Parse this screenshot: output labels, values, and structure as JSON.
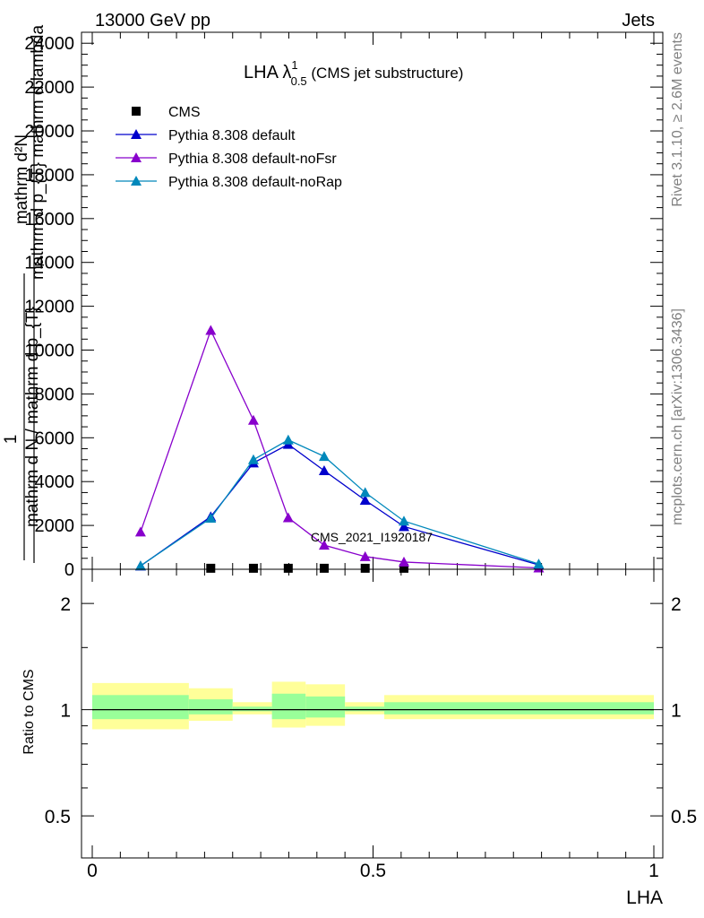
{
  "header": {
    "left": "13000 GeV pp",
    "right": "Jets"
  },
  "side_texts": {
    "rivet": "Rivet 3.1.10, ≥ 2.6M events",
    "mcplots": "mcplots.cern.ch [arXiv:1306.3436]"
  },
  "title": {
    "main": "LHA λ",
    "sup": "1",
    "sub": "0.5",
    "suffix": " (CMS jet substructure)"
  },
  "watermark": "CMS_2021_I1920187",
  "upper_ylabel": {
    "frac_num": "mathrm d²N",
    "inner_num": "mathrm d p_{T} mathrm d lambda",
    "one": "1",
    "frac_den": "mathrm d N / mathrm d p_{T}"
  },
  "lower_ylabel": "Ratio to CMS",
  "xlabel": "LHA",
  "chart_data": [
    {
      "type": "line",
      "panel": "main",
      "xlim": [
        0,
        1
      ],
      "ylim": [
        0,
        24500
      ],
      "ytick_values": [
        0,
        2000,
        4000,
        6000,
        8000,
        10000,
        12000,
        14000,
        16000,
        18000,
        20000,
        22000,
        24000
      ],
      "ytick_labels": [
        "0",
        "2000",
        "4000",
        "6000",
        "8000",
        "10000",
        "12000",
        "14000",
        "16000",
        "18000",
        "20000",
        "22000",
        "24000"
      ],
      "legend_placement": "top-left",
      "series": [
        {
          "name": "CMS",
          "color": "#000000",
          "marker": "square",
          "line": false,
          "x": [
            0.211,
            0.287,
            0.349,
            0.413,
            0.486,
            0.555
          ],
          "y": [
            5,
            5,
            5,
            5,
            5,
            5
          ]
        },
        {
          "name": "Pythia 8.308 default",
          "color": "#0000cc",
          "marker": "triangle",
          "line": true,
          "x": [
            0.086,
            0.211,
            0.287,
            0.349,
            0.413,
            0.486,
            0.555,
            0.795
          ],
          "y": [
            150,
            2400,
            4850,
            5700,
            4500,
            3150,
            1950,
            200
          ]
        },
        {
          "name": "Pythia 8.308 default-noFsr",
          "color": "#8800cc",
          "marker": "triangle",
          "line": true,
          "x": [
            0.086,
            0.211,
            0.287,
            0.349,
            0.413,
            0.486,
            0.555,
            0.795
          ],
          "y": [
            1700,
            10900,
            6800,
            2350,
            1100,
            580,
            330,
            60
          ]
        },
        {
          "name": "Pythia 8.308 default-noRap",
          "color": "#0088bb",
          "marker": "triangle",
          "line": true,
          "x": [
            0.086,
            0.211,
            0.287,
            0.349,
            0.413,
            0.486,
            0.555,
            0.795
          ],
          "y": [
            160,
            2330,
            5000,
            5900,
            5150,
            3500,
            2200,
            240
          ]
        }
      ]
    },
    {
      "type": "area",
      "panel": "ratio",
      "xlim": [
        0,
        1
      ],
      "ylim_log": [
        0.38,
        2.5
      ],
      "ytick_values": [
        0.5,
        1,
        2
      ],
      "ytick_labels": [
        "0.5",
        "1",
        "2"
      ],
      "xtick_values": [
        0,
        0.5,
        1
      ],
      "xtick_labels": [
        "0",
        "0.5",
        "1"
      ],
      "reference_line": 1,
      "bands": [
        {
          "x0": 0.0,
          "x1": 0.172,
          "yellow": [
            0.88,
            1.19
          ],
          "green": [
            0.94,
            1.1
          ]
        },
        {
          "x0": 0.172,
          "x1": 0.25,
          "yellow": [
            0.93,
            1.15
          ],
          "green": [
            0.97,
            1.07
          ]
        },
        {
          "x0": 0.25,
          "x1": 0.32,
          "yellow": [
            0.97,
            1.05
          ],
          "green": [
            0.99,
            1.02
          ]
        },
        {
          "x0": 0.32,
          "x1": 0.38,
          "yellow": [
            0.89,
            1.2
          ],
          "green": [
            0.94,
            1.11
          ]
        },
        {
          "x0": 0.38,
          "x1": 0.45,
          "yellow": [
            0.9,
            1.18
          ],
          "green": [
            0.95,
            1.09
          ]
        },
        {
          "x0": 0.45,
          "x1": 0.52,
          "yellow": [
            0.97,
            1.05
          ],
          "green": [
            0.99,
            1.02
          ]
        },
        {
          "x0": 0.52,
          "x1": 1.0,
          "yellow": [
            0.94,
            1.1
          ],
          "green": [
            0.97,
            1.05
          ]
        }
      ]
    }
  ]
}
